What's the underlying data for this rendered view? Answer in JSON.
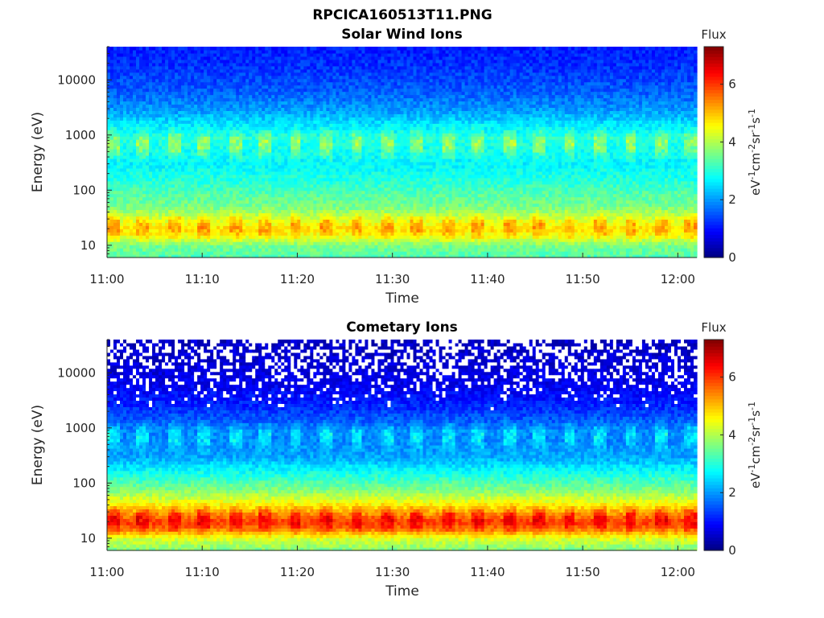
{
  "figure_title": "RPCICA160513T11.PNG",
  "colormap": "jet",
  "chart_data": [
    {
      "type": "heatmap",
      "title": "Solar Wind Ions",
      "xlabel": "Time",
      "ylabel": "Energy (eV)",
      "x_tick_labels": [
        "11:00",
        "11:10",
        "11:20",
        "11:30",
        "11:40",
        "11:50",
        "12:00"
      ],
      "xlim": [
        "11:00",
        "12:02"
      ],
      "y_scale": "log",
      "y_tick_values": [
        10,
        100,
        1000,
        10000
      ],
      "y_tick_labels": [
        "10",
        "100",
        "1000",
        "10000"
      ],
      "ylim": [
        6,
        40000
      ],
      "colorbar": {
        "title": "Flux",
        "label_parts": [
          "eV",
          "-1",
          "cm",
          "-2",
          "sr",
          "-1",
          "s",
          "-1"
        ],
        "range": [
          0,
          7.3
        ],
        "tick_values": [
          0,
          2,
          4,
          6
        ],
        "tick_labels": [
          "0",
          "2",
          "4",
          "6"
        ]
      },
      "profile": {
        "energy_eV": [
          6,
          10,
          15,
          20,
          30,
          50,
          80,
          150,
          300,
          600,
          900,
          1500,
          3000,
          6000,
          15000,
          40000
        ],
        "flux": [
          3.3,
          3.6,
          4.5,
          4.8,
          4.3,
          3.6,
          3.4,
          3.0,
          2.7,
          2.9,
          3.0,
          2.6,
          2.0,
          1.6,
          1.3,
          1.1
        ]
      },
      "sweep": {
        "period_min": 3.2,
        "low_energy_peak_eV": 22,
        "low_energy_peak_flux": 5.4,
        "high_energy_peak_eV": 700,
        "high_energy_peak_flux": 4.1,
        "sparse_high_energy_data": false
      }
    },
    {
      "type": "heatmap",
      "title": "Cometary Ions",
      "xlabel": "Time",
      "ylabel": "Energy (eV)",
      "x_tick_labels": [
        "11:00",
        "11:10",
        "11:20",
        "11:30",
        "11:40",
        "11:50",
        "12:00"
      ],
      "xlim": [
        "11:00",
        "12:02"
      ],
      "y_scale": "log",
      "y_tick_values": [
        10,
        100,
        1000,
        10000
      ],
      "y_tick_labels": [
        "10",
        "100",
        "1000",
        "10000"
      ],
      "ylim": [
        6,
        40000
      ],
      "colorbar": {
        "title": "Flux",
        "label_parts": [
          "eV",
          "-1",
          "cm",
          "-2",
          "sr",
          "-1",
          "s",
          "-1"
        ],
        "range": [
          0,
          7.3
        ],
        "tick_values": [
          0,
          2,
          4,
          6
        ],
        "tick_labels": [
          "0",
          "2",
          "4",
          "6"
        ]
      },
      "profile": {
        "energy_eV": [
          6,
          10,
          15,
          20,
          30,
          50,
          80,
          150,
          300,
          600,
          900,
          1500,
          3000,
          6000,
          15000,
          40000
        ],
        "flux": [
          3.6,
          4.3,
          5.6,
          6.0,
          5.2,
          4.3,
          3.6,
          2.9,
          2.1,
          1.9,
          1.9,
          1.5,
          1.1,
          0.8,
          0.6,
          0.5
        ]
      },
      "sweep": {
        "period_min": 3.2,
        "low_energy_peak_eV": 22,
        "low_energy_peak_flux": 6.6,
        "high_energy_peak_eV": 700,
        "high_energy_peak_flux": 2.9,
        "sparse_high_energy_data": true
      }
    }
  ]
}
